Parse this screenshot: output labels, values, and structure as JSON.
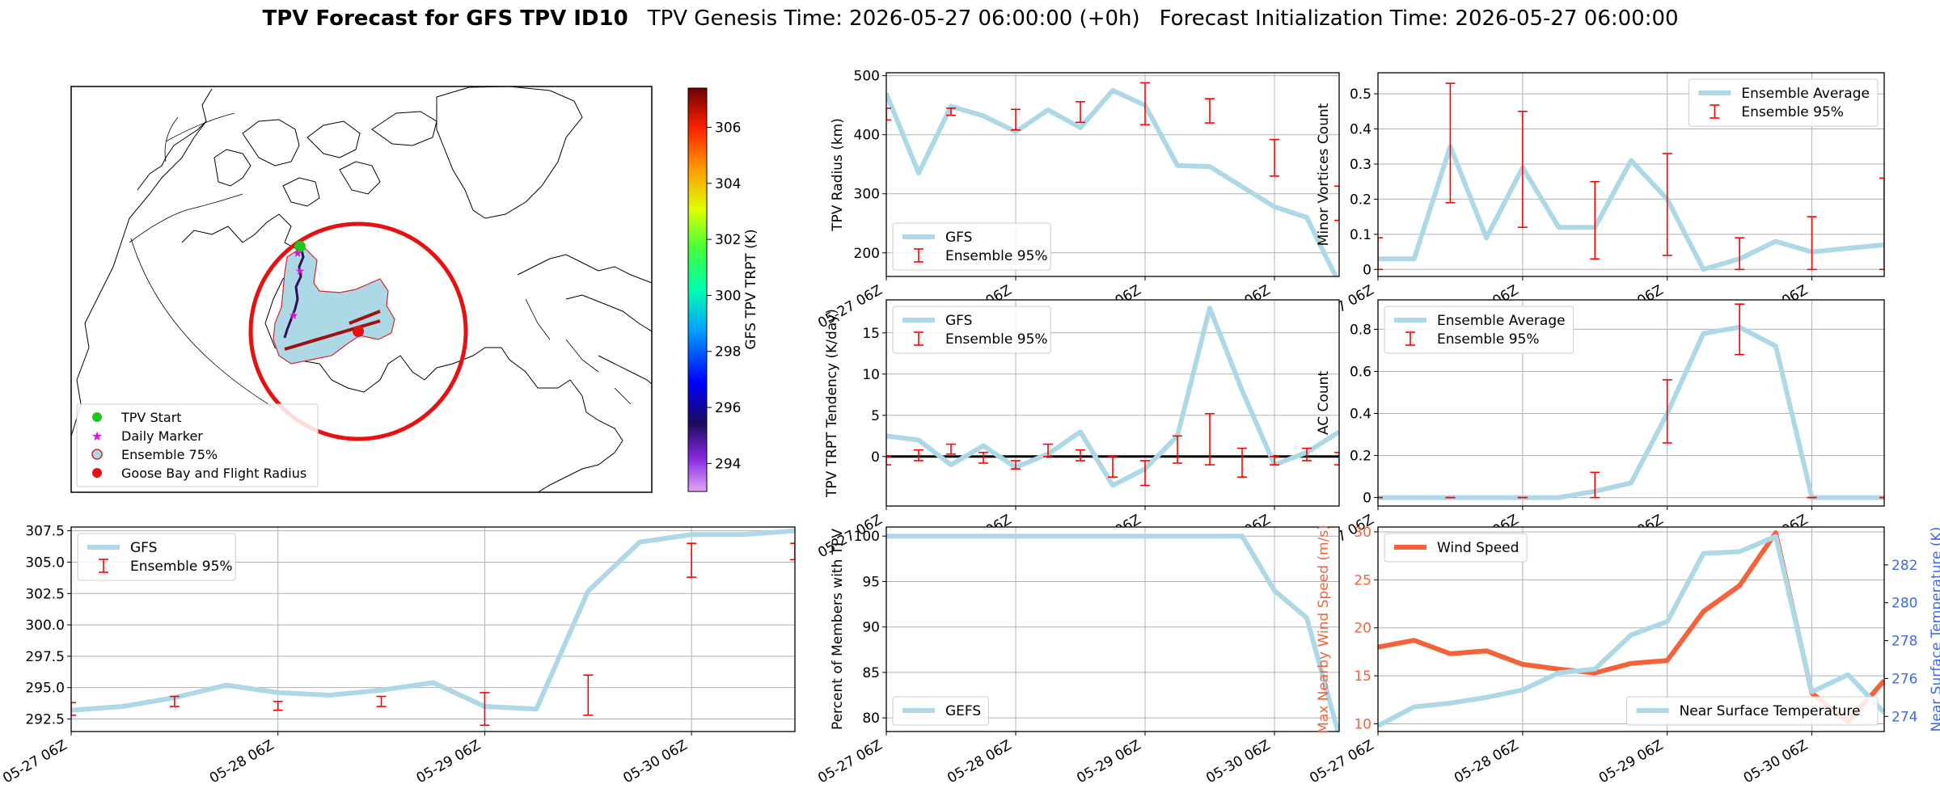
{
  "header": {
    "title_bold": "TPV Forecast for GFS TPV ID10",
    "genesis": "TPV Genesis Time: 2026-05-27 06:00:00 (+0h)",
    "init": "Forecast Initialization Time: 2026-05-27 06:00:00"
  },
  "colors": {
    "gfs": "#add8e6",
    "ens": "#ff0000",
    "wind": "#f4623a",
    "temp_axis": "#4169e1"
  },
  "map": {
    "colorbar_label": "GFS TPV TRPT (K)",
    "colorbar_ticks": [
      "294",
      "296",
      "298",
      "300",
      "302",
      "304",
      "306"
    ],
    "colorbar_range": [
      293,
      307.4
    ],
    "legend": [
      "TPV Start",
      "Daily Marker",
      "Ensemble 75%",
      "Goose Bay and Flight Radius"
    ]
  },
  "time_ticks": [
    "05-27 06Z",
    "05-28 06Z",
    "05-29 06Z",
    "05-30 06Z"
  ],
  "chart_data": [
    {
      "id": "radius",
      "type": "line",
      "ylabel": "TPV Radius (km)",
      "ylim": [
        160,
        505
      ],
      "yticks": [
        200,
        300,
        400,
        500
      ],
      "legend": [
        "GFS",
        "Ensemble 95%"
      ],
      "legend_pos": "lower-left",
      "x": [
        0,
        0.25,
        0.5,
        0.75,
        1,
        1.25,
        1.5,
        1.75,
        2,
        2.25,
        2.5,
        2.75,
        3,
        3.25,
        3.5
      ],
      "gfs": [
        470,
        335,
        448,
        432,
        405,
        442,
        412,
        475,
        450,
        348,
        346,
        312,
        278,
        260,
        148
      ],
      "ens_x": [
        0,
        0.5,
        1,
        1.5,
        2,
        2.5,
        3,
        3.5
      ],
      "ens_lo": [
        425,
        433,
        408,
        421,
        417,
        420,
        330,
        255
      ],
      "ens_hi": [
        445,
        445,
        443,
        456,
        488,
        461,
        392,
        313
      ]
    },
    {
      "id": "minor",
      "type": "line",
      "ylabel": "Minor Vortices Count",
      "ylim": [
        -0.02,
        0.56
      ],
      "yticks": [
        0.0,
        0.1,
        0.2,
        0.3,
        0.4,
        0.5
      ],
      "legend": [
        "Ensemble Average",
        "Ensemble 95%"
      ],
      "legend_pos": "upper-right",
      "x": [
        0,
        0.25,
        0.5,
        0.75,
        1,
        1.25,
        1.5,
        1.75,
        2,
        2.25,
        2.5,
        2.75,
        3,
        3.25,
        3.5
      ],
      "gfs": [
        0.03,
        0.03,
        0.35,
        0.09,
        0.29,
        0.12,
        0.12,
        0.31,
        0.2,
        0.0,
        0.03,
        0.08,
        0.05,
        0.06,
        0.07
      ],
      "ens_x": [
        0,
        0.5,
        1,
        1.5,
        2,
        2.5,
        3,
        3.5
      ],
      "ens_lo": [
        0.0,
        0.19,
        0.12,
        0.03,
        0.04,
        0.0,
        0.0,
        0.0
      ],
      "ens_hi": [
        0.09,
        0.53,
        0.45,
        0.25,
        0.33,
        0.09,
        0.15,
        0.26
      ]
    },
    {
      "id": "tendency",
      "type": "line",
      "ylabel": "TPV TRPT Tendency (K/day)",
      "ylim": [
        -6,
        19
      ],
      "yticks": [
        0,
        5,
        10,
        15
      ],
      "zero_line": true,
      "legend": [
        "GFS",
        "Ensemble 95%"
      ],
      "legend_pos": "upper-left",
      "x": [
        0,
        0.25,
        0.5,
        0.75,
        1,
        1.25,
        1.5,
        1.75,
        2,
        2.25,
        2.5,
        2.75,
        3,
        3.25,
        3.5
      ],
      "gfs": [
        2.5,
        2.0,
        -1.0,
        1.3,
        -1.3,
        0.3,
        3.0,
        -3.5,
        -1.5,
        2.5,
        18.0,
        8.0,
        -1.0,
        0.5,
        3.0
      ],
      "ens_x": [
        0,
        0.25,
        0.5,
        0.75,
        1,
        1.25,
        1.5,
        1.75,
        2,
        2.25,
        2.5,
        2.75,
        3,
        3.25,
        3.5
      ],
      "ens_lo": [
        -1.0,
        -0.5,
        0.3,
        -0.8,
        -1.5,
        0.0,
        -0.5,
        -2.5,
        -3.5,
        -0.8,
        -1.0,
        -2.5,
        -1.0,
        -0.5,
        -1.0
      ],
      "ens_hi": [
        0.0,
        0.8,
        1.5,
        0.5,
        -0.5,
        1.5,
        0.8,
        0.0,
        -0.5,
        2.5,
        5.2,
        1.0,
        0.0,
        1.0,
        0.5
      ]
    },
    {
      "id": "ac",
      "type": "line",
      "ylabel": "AC Count",
      "ylim": [
        -0.04,
        0.94
      ],
      "yticks": [
        0.0,
        0.2,
        0.4,
        0.6,
        0.8
      ],
      "legend": [
        "Ensemble Average",
        "Ensemble 95%"
      ],
      "legend_pos": "upper-left",
      "x": [
        0,
        0.25,
        0.5,
        0.75,
        1,
        1.25,
        1.5,
        1.75,
        2,
        2.25,
        2.5,
        2.75,
        3,
        3.25,
        3.5
      ],
      "gfs": [
        0,
        0,
        0,
        0,
        0,
        0,
        0.03,
        0.07,
        0.4,
        0.78,
        0.81,
        0.72,
        0,
        0,
        0
      ],
      "ens_x": [
        0,
        0.5,
        1,
        1.5,
        2,
        2.5,
        3,
        3.5
      ],
      "ens_lo": [
        0,
        0,
        0,
        0,
        0.26,
        0.68,
        0,
        0
      ],
      "ens_hi": [
        0,
        0,
        0,
        0.12,
        0.56,
        0.92,
        0,
        0
      ]
    },
    {
      "id": "trpt",
      "type": "line",
      "ylabel": "TPV TRPT (K)",
      "ylim": [
        291.5,
        307.8
      ],
      "yticks": [
        "292.5",
        "295.0",
        "297.5",
        "300.0",
        "302.5",
        "305.0",
        "307.5"
      ],
      "legend": [
        "GFS",
        "Ensemble 95%"
      ],
      "legend_pos": "upper-left",
      "x": [
        0,
        0.25,
        0.5,
        0.75,
        1,
        1.25,
        1.5,
        1.75,
        2,
        2.25,
        2.5,
        2.75,
        3,
        3.25,
        3.5
      ],
      "gfs": [
        293.2,
        293.5,
        294.2,
        295.2,
        294.6,
        294.4,
        294.8,
        295.4,
        293.5,
        293.3,
        302.7,
        306.6,
        307.2,
        307.2,
        307.5
      ],
      "ens_x": [
        0,
        0.5,
        1,
        1.5,
        2,
        2.5,
        3,
        3.5
      ],
      "ens_lo": [
        292.8,
        293.5,
        293.2,
        293.5,
        292.0,
        292.8,
        303.8,
        305.2
      ],
      "ens_hi": [
        293.8,
        294.3,
        293.9,
        294.3,
        294.6,
        296.0,
        306.5,
        306.5
      ]
    },
    {
      "id": "percent",
      "type": "line",
      "ylabel": "Percent of Members with TPV",
      "ylim": [
        78.5,
        101
      ],
      "yticks": [
        80,
        85,
        90,
        95,
        100
      ],
      "legend": [
        "GEFS"
      ],
      "legend_pos": "lower-left",
      "x": [
        0,
        0.25,
        0.5,
        0.75,
        1,
        1.25,
        1.5,
        1.75,
        2,
        2.25,
        2.5,
        2.75,
        3,
        3.25,
        3.5
      ],
      "gfs": [
        100,
        100,
        100,
        100,
        100,
        100,
        100,
        100,
        100,
        100,
        100,
        100,
        94,
        91,
        78
      ]
    },
    {
      "id": "wind",
      "type": "line",
      "ylabel": "Max Nearby Wind Speed (m/s)",
      "ylabel2": "Near Surface Temperature (K)",
      "ylim": [
        9.2,
        30.5
      ],
      "yticks": [
        10,
        15,
        20,
        25,
        30
      ],
      "ylim2": [
        273.2,
        284.0
      ],
      "yticks2": [
        274,
        276,
        278,
        280,
        282
      ],
      "legend": [
        "Wind Speed"
      ],
      "legend2": [
        "Near Surface Temperature"
      ],
      "x": [
        0,
        0.25,
        0.5,
        0.75,
        1,
        1.25,
        1.5,
        1.75,
        2,
        2.25,
        2.5,
        2.75,
        3,
        3.25,
        3.5
      ],
      "wind": [
        18.0,
        18.7,
        17.3,
        17.6,
        16.2,
        15.7,
        15.3,
        16.3,
        16.6,
        21.7,
        24.4,
        29.9,
        13.2,
        10.2,
        14.5
      ],
      "temp": [
        273.5,
        274.5,
        274.7,
        275.0,
        275.4,
        276.3,
        276.5,
        278.3,
        279.0,
        282.6,
        282.7,
        283.5,
        275.3,
        276.2,
        274.2
      ]
    }
  ]
}
